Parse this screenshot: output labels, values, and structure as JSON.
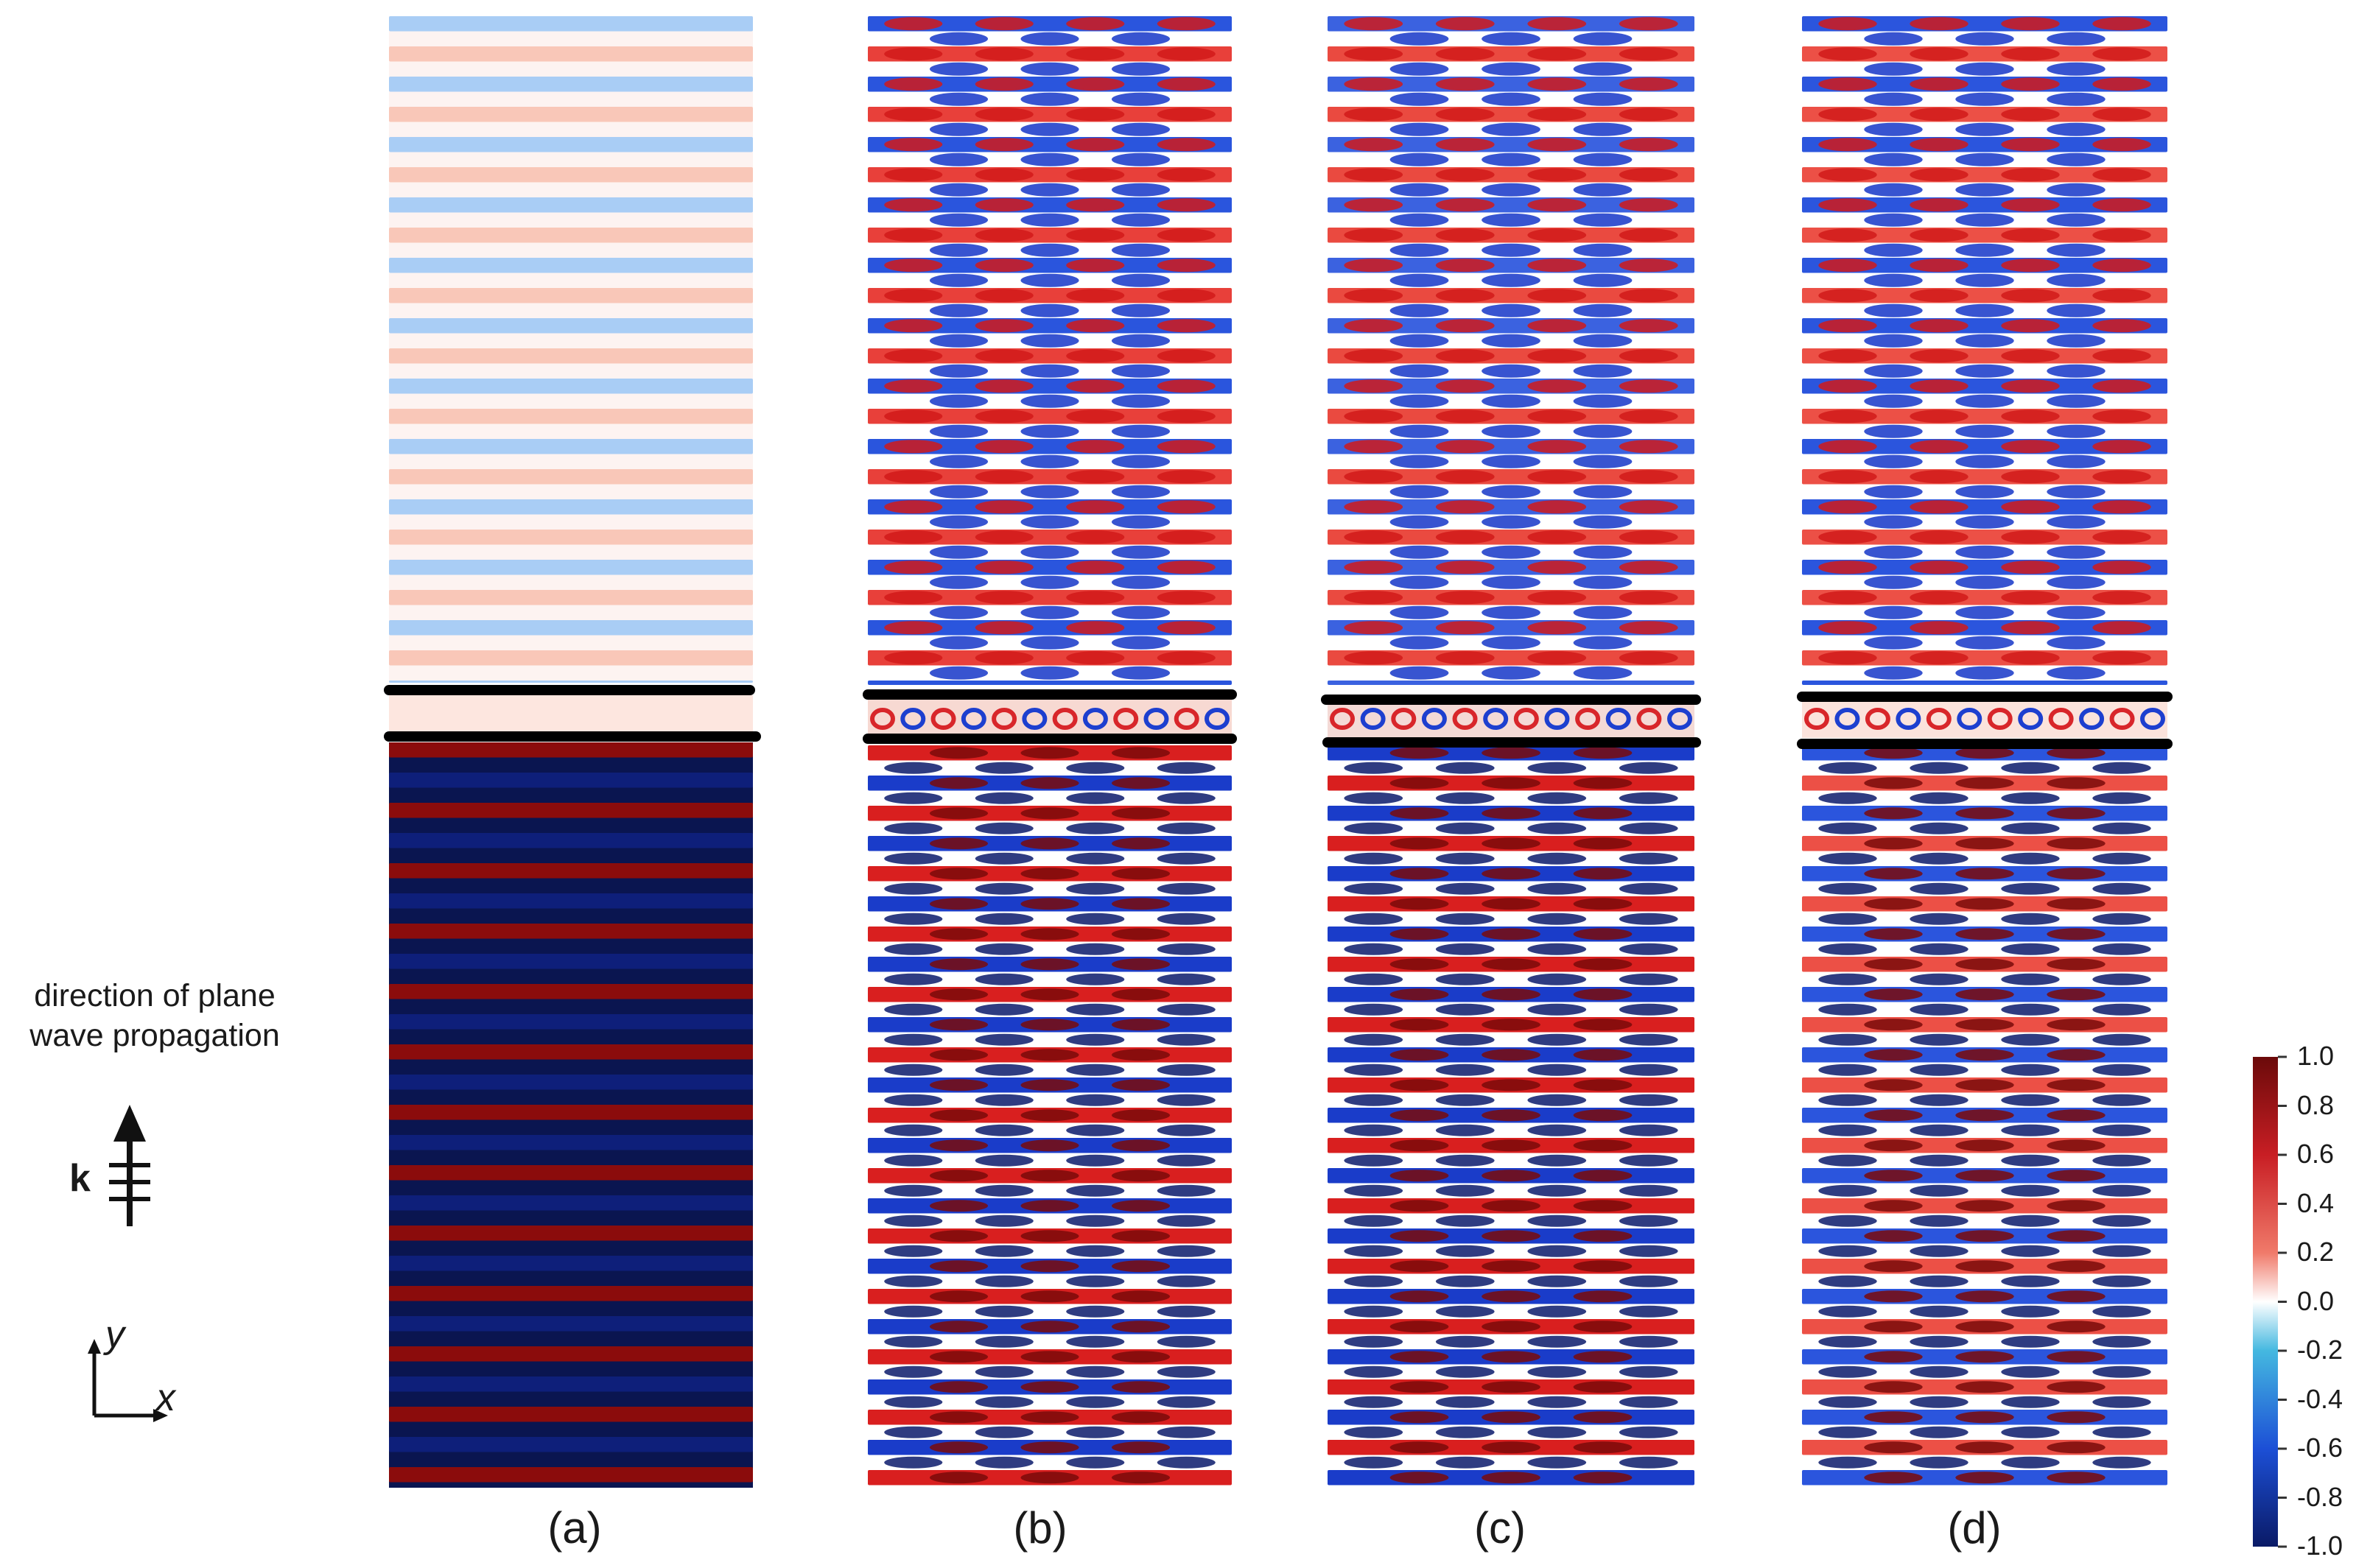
{
  "panels": [
    {
      "label": "(a)",
      "id": "a"
    },
    {
      "label": "(b)",
      "id": "b"
    },
    {
      "label": "(c)",
      "id": "c"
    },
    {
      "label": "(d)",
      "id": "d"
    }
  ],
  "legend": {
    "direction_text_line1": "direction of plane",
    "direction_text_line2": "wave propagation",
    "wavevector_symbol": "k",
    "axis_y": "y",
    "axis_x": "x"
  },
  "colorbar": {
    "ticks": [
      "1.0",
      "0.8",
      "0.6",
      "0.4",
      "0.2",
      "0.0",
      "-0.2",
      "-0.4",
      "-0.6",
      "-0.8",
      "-1.0"
    ],
    "range": [
      -1.0,
      1.0
    ],
    "colors": {
      "max": "#6b0a0a",
      "high": "#e8202a",
      "zero": "#ffffff",
      "low": "#1c4fd6",
      "min": "#0a1a66"
    }
  }
}
